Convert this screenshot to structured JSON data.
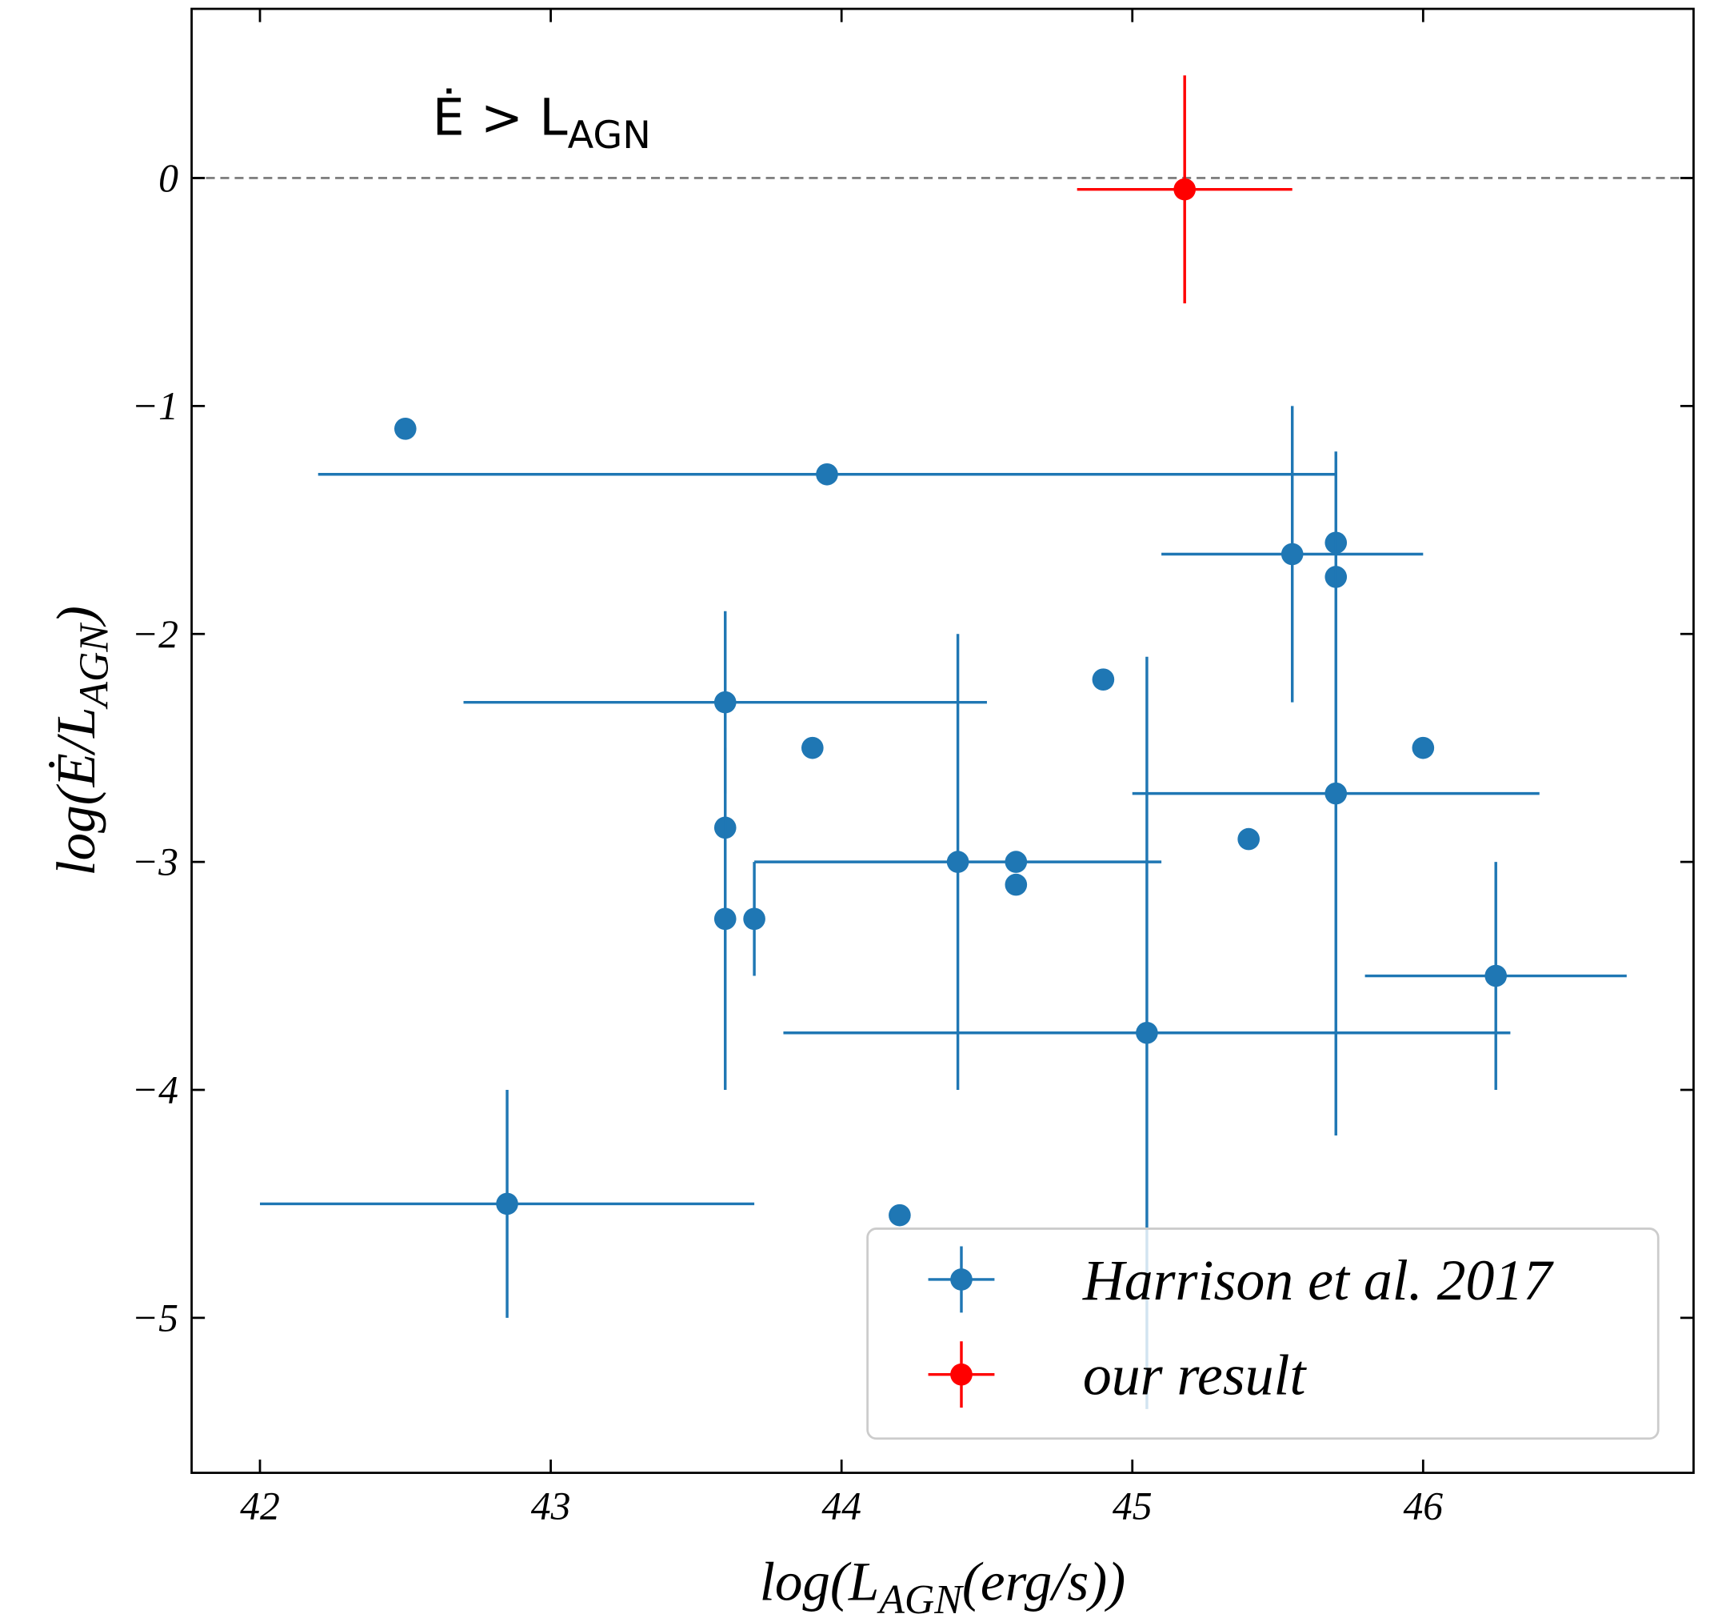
{
  "chart_data": {
    "type": "errorbar_scatter",
    "xlabel": [
      "log(L",
      "AGN",
      "(erg/s))"
    ],
    "ylabel": [
      "log(Ė/L",
      "AGN",
      ")"
    ],
    "annotation": [
      "Ė > L",
      "AGN"
    ],
    "hline": 0,
    "xlim": [
      41.765,
      46.93
    ],
    "ylim": [
      -5.68,
      0.742
    ],
    "xticks": [
      42,
      43,
      44,
      45,
      46
    ],
    "yticks": [
      {
        "value": -5,
        "label": "−5"
      },
      {
        "value": -4,
        "label": "−4"
      },
      {
        "value": -3,
        "label": "−3"
      },
      {
        "value": -2,
        "label": "−2"
      },
      {
        "value": -1,
        "label": "−1"
      },
      0
    ],
    "legend": "lower right",
    "series": [
      {
        "name": "Harrison et al. 2017",
        "color": "#1f77b4",
        "x": [
          42.5,
          43.95,
          45.55,
          45.7,
          45.7,
          43.6,
          43.6,
          43.6,
          43.7,
          44.4,
          43.9,
          44.6,
          44.6,
          44.9,
          45.05,
          45.4,
          46.0,
          45.7,
          46.25,
          42.85,
          44.2
        ],
        "values": [
          -1.1,
          -1.3,
          -1.65,
          -1.6,
          -1.75,
          -2.3,
          -2.85,
          -3.25,
          -3.25,
          -3.0,
          -2.5,
          -3.0,
          -3.1,
          -2.2,
          -3.75,
          -2.9,
          -2.5,
          -2.7,
          -3.5,
          -4.5,
          -4.55
        ],
        "xerr": [
          null,
          1.75,
          0.45,
          null,
          null,
          0.9,
          null,
          null,
          null,
          0.7,
          null,
          null,
          null,
          null,
          1.25,
          null,
          null,
          0.7,
          0.45,
          0.85,
          null
        ],
        "yerr": [
          null,
          null,
          0.65,
          null,
          null,
          0.4,
          null,
          0.75,
          0.25,
          1.0,
          null,
          null,
          null,
          null,
          1.65,
          null,
          null,
          1.5,
          0.5,
          0.5,
          null
        ]
      },
      {
        "name": "our result",
        "color": "#ff0000",
        "x": [
          45.18
        ],
        "values": [
          -0.05
        ],
        "xerr": [
          0.37
        ],
        "yerr": [
          0.5
        ]
      }
    ]
  }
}
